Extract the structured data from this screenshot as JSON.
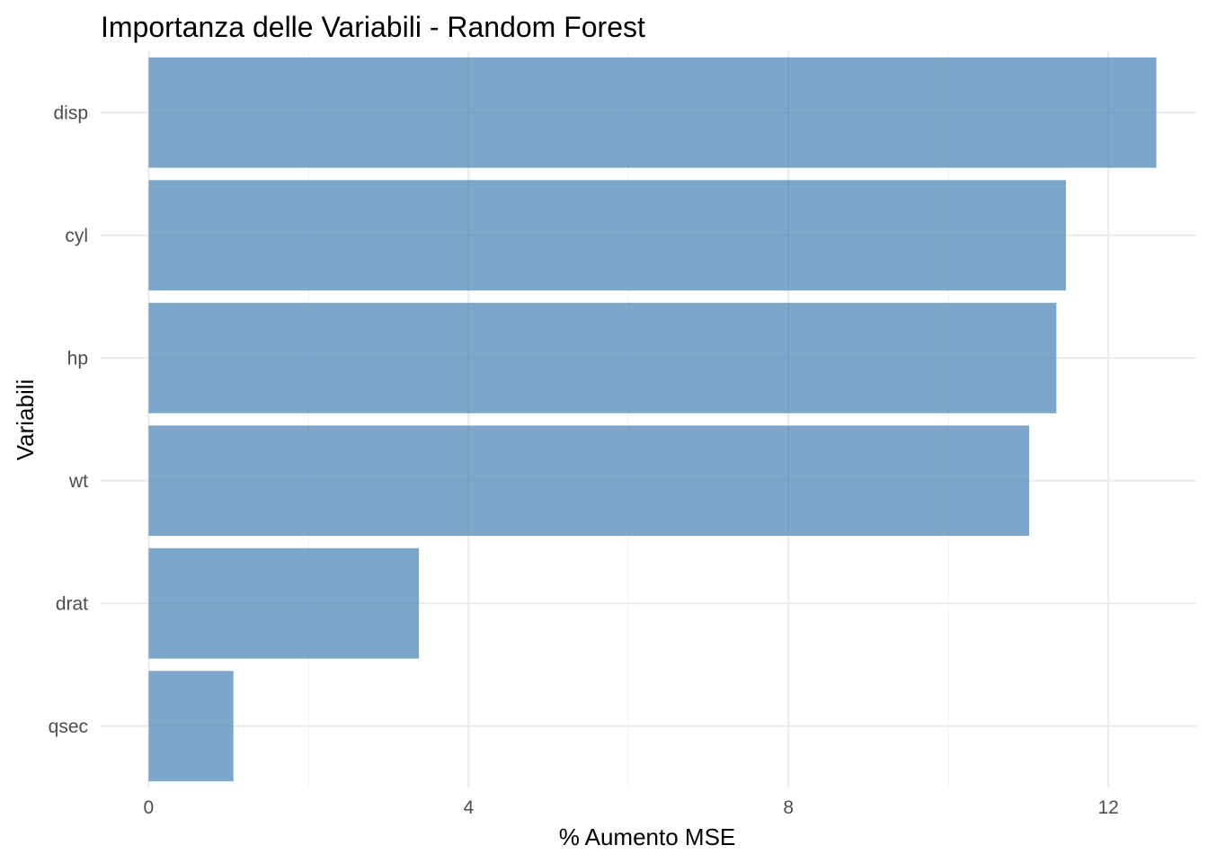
{
  "chart_data": {
    "type": "bar",
    "orientation": "horizontal",
    "title": "Importanza delle Variabili - Random Forest",
    "xlabel": "% Aumento MSE",
    "ylabel": "Variabili",
    "categories": [
      "disp",
      "cyl",
      "hp",
      "wt",
      "drat",
      "qsec"
    ],
    "values": [
      12.6,
      11.47,
      11.35,
      11.01,
      3.38,
      1.06
    ],
    "xlim": [
      -0.6,
      13.1
    ],
    "xticks": [
      0,
      4,
      8,
      12
    ],
    "xtick_labels": [
      "0",
      "4",
      "8",
      "12"
    ],
    "grid": true,
    "bar_color": "#4682b4",
    "bar_opacity": 0.7
  }
}
